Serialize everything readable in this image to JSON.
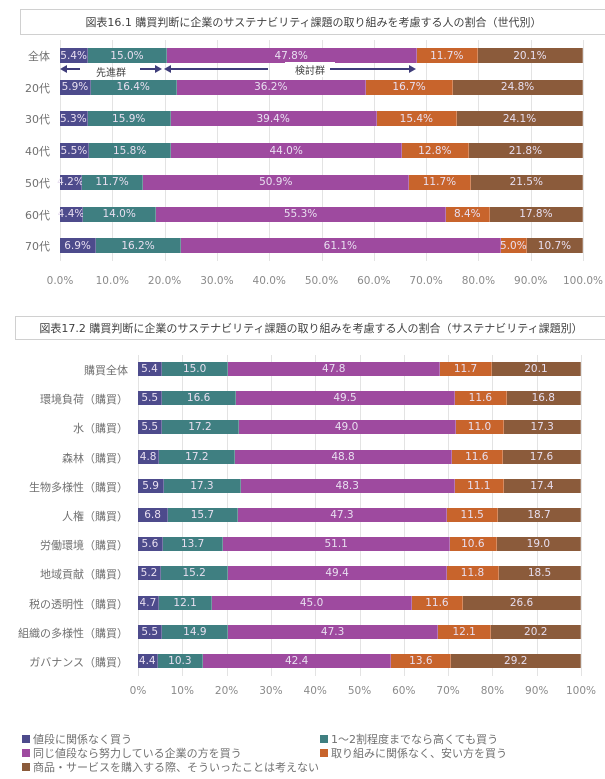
{
  "colors": [
    "#4d4b8c",
    "#3f7f81",
    "#9e4a9f",
    "#c8642c",
    "#8b5b3b"
  ],
  "legend": [
    "値段に関係なく買う",
    "1～2割程度までなら高くても買う",
    "同じ値段なら努力している企業の方を買う",
    "取り組みに関係なく、安い方を買う",
    "商品・サービスを購入する際、そういったことは考えない"
  ],
  "chart_data": [
    {
      "type": "bar",
      "orientation": "horizontal-stacked-100",
      "title": "図表16.1 購買判断に企業のサステナビリティ課題の取り組みを考慮する人の割合（世代別）",
      "categories": [
        "全体",
        "20代",
        "30代",
        "40代",
        "50代",
        "60代",
        "70代"
      ],
      "series": [
        {
          "name": "値段に関係なく買う",
          "values": [
            5.4,
            5.9,
            5.3,
            5.5,
            4.2,
            4.4,
            6.9
          ]
        },
        {
          "name": "1～2割程度までなら高くても買う",
          "values": [
            15.0,
            16.4,
            15.9,
            15.8,
            11.7,
            14.0,
            16.2
          ]
        },
        {
          "name": "同じ値段なら努力している企業の方を買う",
          "values": [
            47.8,
            36.2,
            39.4,
            44.0,
            50.9,
            55.3,
            61.1
          ]
        },
        {
          "name": "取り組みに関係なく、安い方を買う",
          "values": [
            11.7,
            16.7,
            15.4,
            12.8,
            11.7,
            8.4,
            5.0
          ]
        },
        {
          "name": "商品・サービスを購入する際、そういったことは考えない",
          "values": [
            20.1,
            24.8,
            24.1,
            21.8,
            21.5,
            17.8,
            10.7
          ]
        }
      ],
      "label_format": "percent1",
      "xlim": [
        0,
        100
      ],
      "xticks": [
        "0.0%",
        "10.0%",
        "20.0%",
        "30.0%",
        "40.0%",
        "50.0%",
        "60.0%",
        "70.0%",
        "80.0%",
        "90.0%",
        "100.0%"
      ],
      "grid": true,
      "annotations": [
        "先進群",
        "検討群"
      ]
    },
    {
      "type": "bar",
      "orientation": "horizontal-stacked-100",
      "title": "図表17.2 購買判断に企業のサステナビリティ課題の取り組みを考慮する人の割合（サステナビリティ課題別）",
      "categories": [
        "購買全体",
        "環境負荷（購買）",
        "水（購買）",
        "森林（購買）",
        "生物多様性（購買）",
        "人権（購買）",
        "労働環境（購買）",
        "地域貢献（購買）",
        "税の透明性（購買）",
        "組織の多様性（購買）",
        "ガバナンス（購買）"
      ],
      "series": [
        {
          "name": "値段に関係なく買う",
          "values": [
            5.4,
            5.5,
            5.5,
            4.8,
            5.9,
            6.8,
            5.6,
            5.2,
            4.7,
            5.5,
            4.4
          ]
        },
        {
          "name": "1～2割程度までなら高くても買う",
          "values": [
            15.0,
            16.6,
            17.2,
            17.2,
            17.3,
            15.7,
            13.7,
            15.2,
            12.1,
            14.9,
            10.3
          ]
        },
        {
          "name": "同じ値段なら努力している企業の方を買う",
          "values": [
            47.8,
            49.5,
            49.0,
            48.8,
            48.3,
            47.3,
            51.1,
            49.4,
            45.0,
            47.3,
            42.4
          ]
        },
        {
          "name": "取り組みに関係なく、安い方を買う",
          "values": [
            11.7,
            11.6,
            11.0,
            11.6,
            11.1,
            11.5,
            10.6,
            11.8,
            11.6,
            12.1,
            13.6
          ]
        },
        {
          "name": "商品・サービスを購入する際、そういったことは考えない",
          "values": [
            20.1,
            16.8,
            17.3,
            17.6,
            17.4,
            18.7,
            19.0,
            18.5,
            26.6,
            20.2,
            29.2
          ]
        }
      ],
      "label_format": "number1",
      "xlim": [
        0,
        100
      ],
      "xticks": [
        "0%",
        "10%",
        "20%",
        "30%",
        "40%",
        "50%",
        "60%",
        "70%",
        "80%",
        "90%",
        "100%"
      ],
      "grid": true
    }
  ]
}
